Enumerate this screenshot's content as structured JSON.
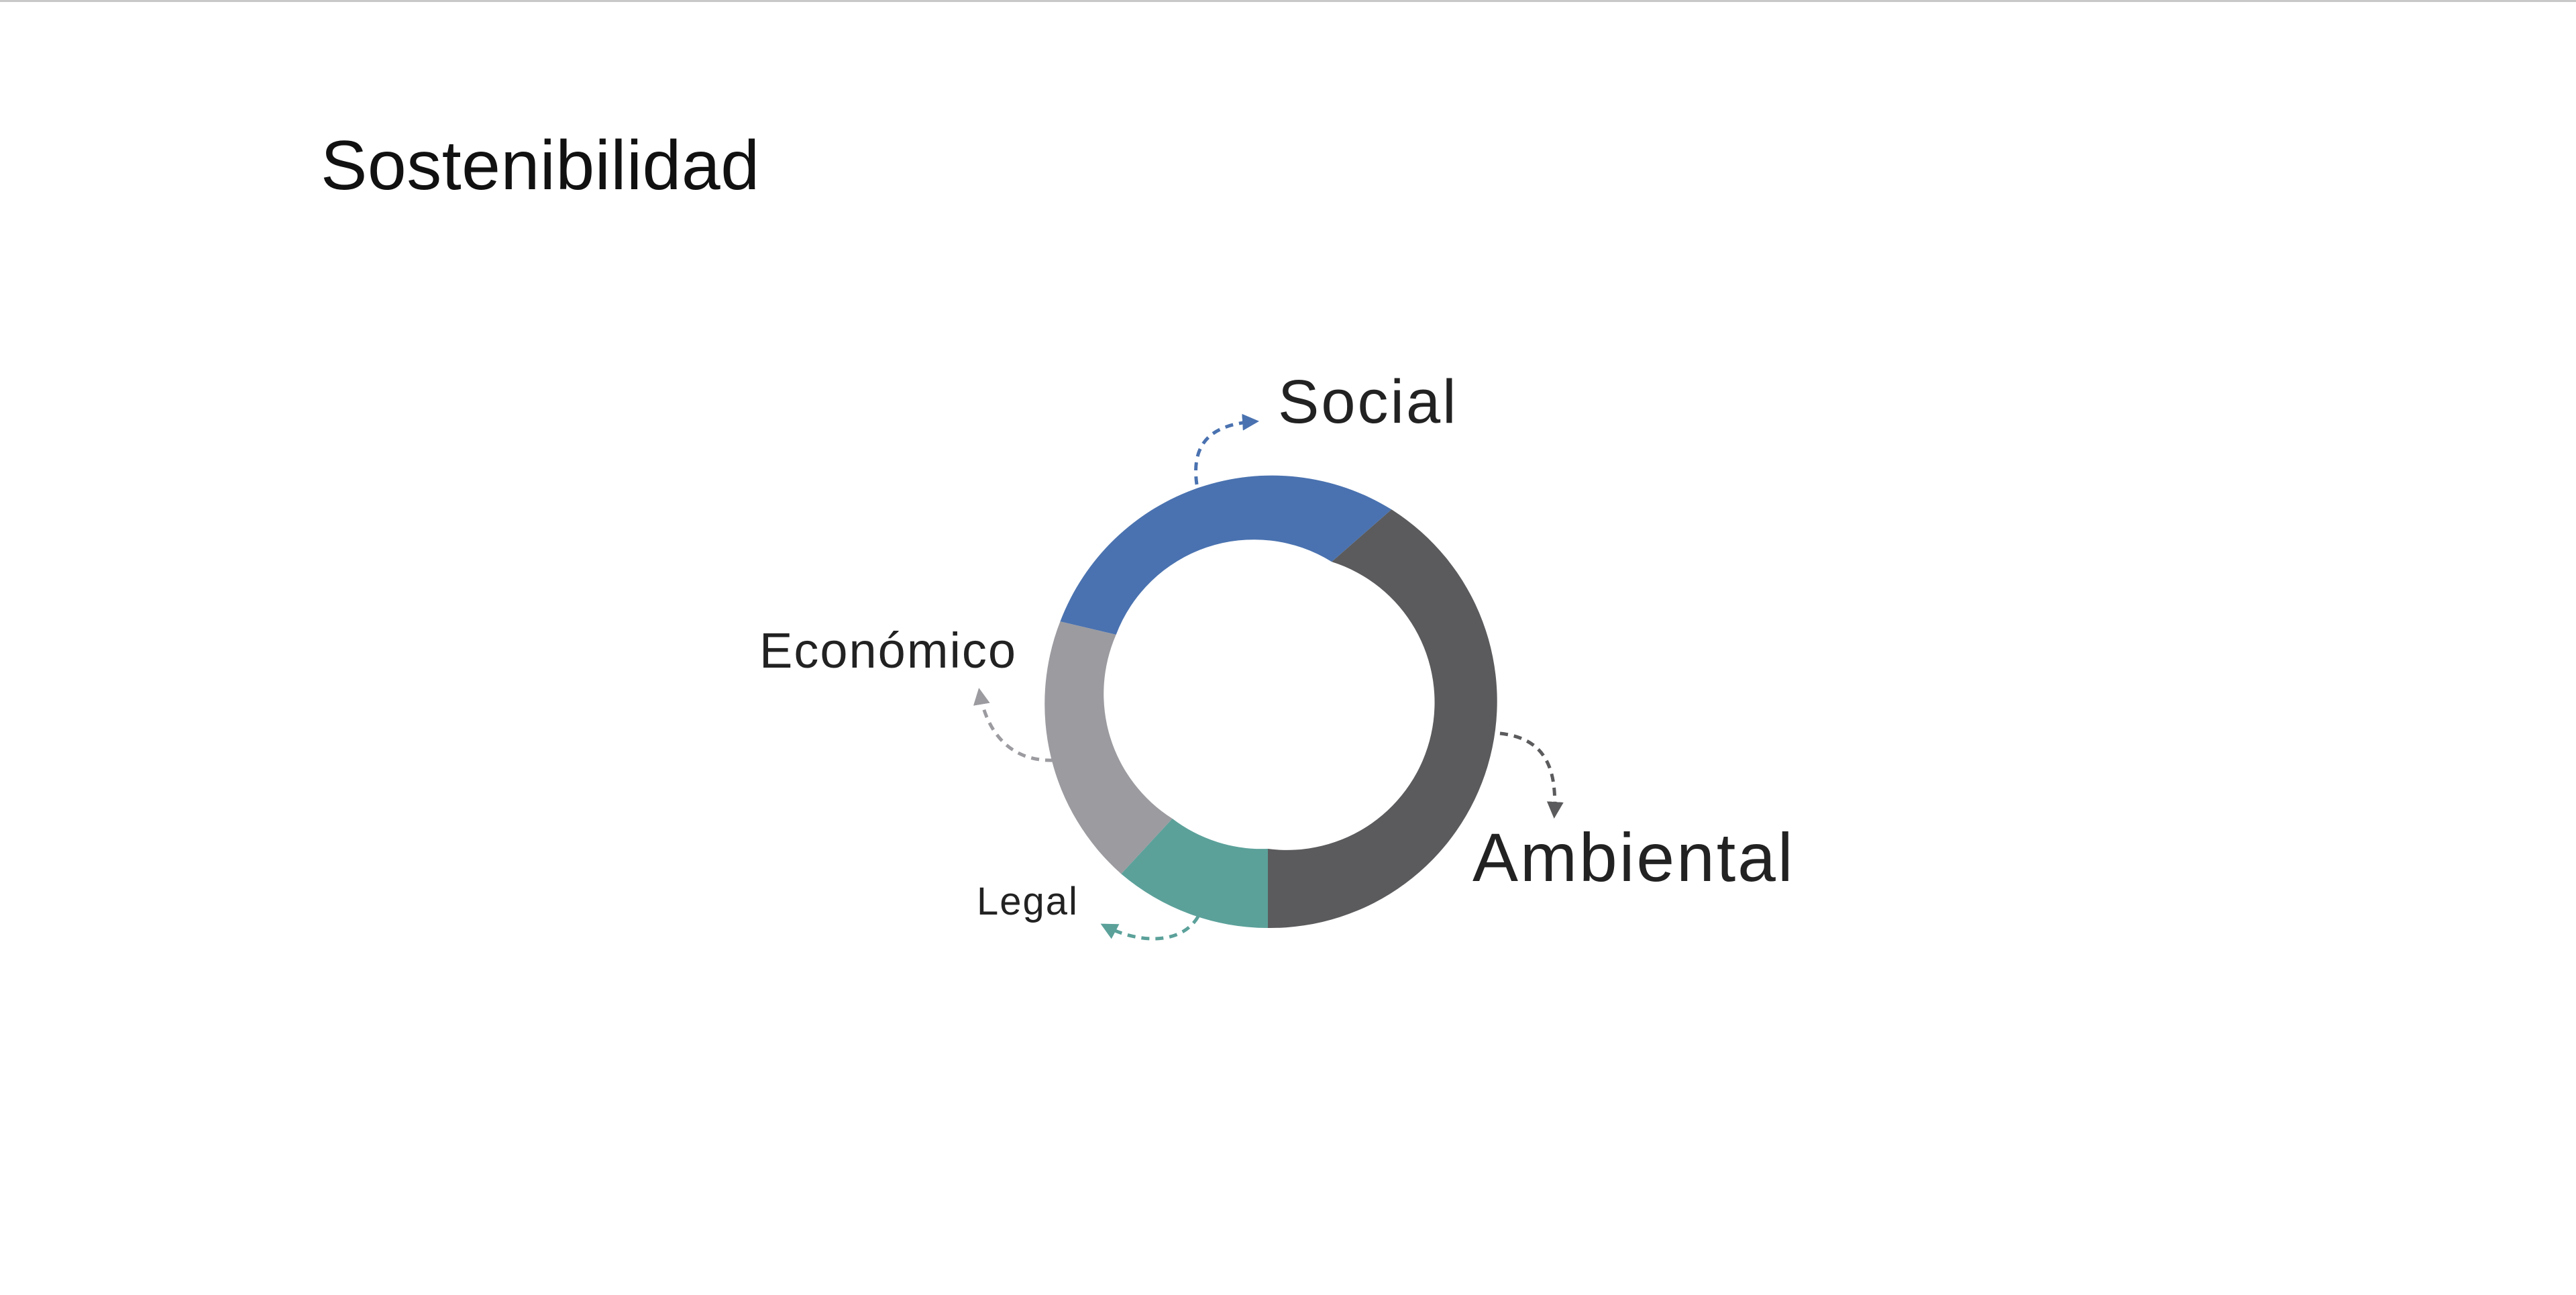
{
  "page": {
    "title": "Sostenibilidad"
  },
  "diagram": {
    "segments": [
      {
        "key": "social",
        "label": "Social",
        "color": "#4a72b0",
        "share": 0.34
      },
      {
        "key": "ambiental",
        "label": "Ambiental",
        "color": "#5b5b5d",
        "share": 0.36
      },
      {
        "key": "legal",
        "label": "Legal",
        "color": "#5ba19a",
        "share": 0.11
      },
      {
        "key": "economico",
        "label": "Económico",
        "color": "#9b9ba0",
        "share": 0.19
      }
    ]
  }
}
